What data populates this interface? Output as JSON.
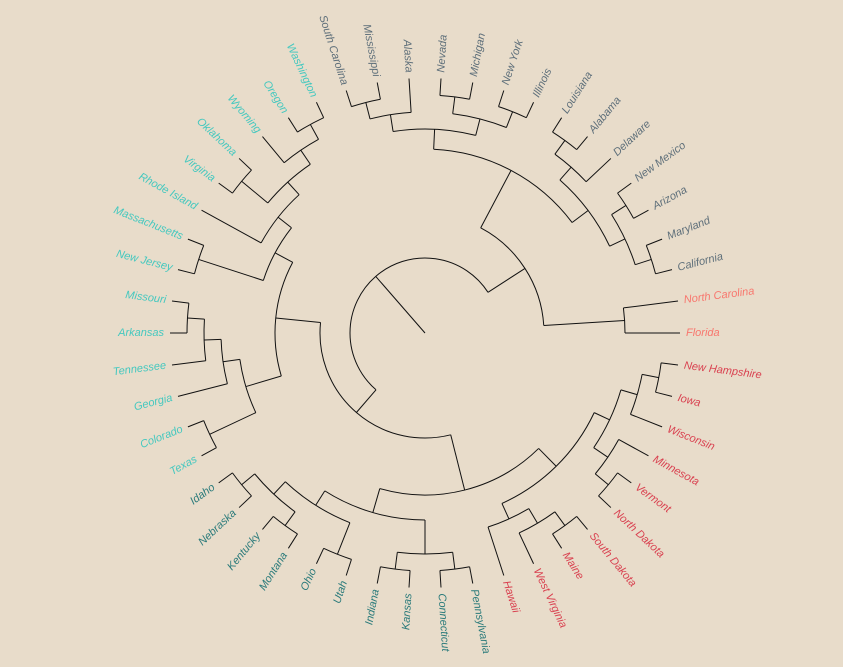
{
  "leaves": [
    {
      "label": "Florida",
      "color": "#f8766d"
    },
    {
      "label": "New Hampshire",
      "color": "#d9404f"
    },
    {
      "label": "Iowa",
      "color": "#d9404f"
    },
    {
      "label": "Wisconsin",
      "color": "#d9404f"
    },
    {
      "label": "Minnesota",
      "color": "#d9404f"
    },
    {
      "label": "Vermont",
      "color": "#d9404f"
    },
    {
      "label": "North Dakota",
      "color": "#d9404f"
    },
    {
      "label": "South Dakota",
      "color": "#d9404f"
    },
    {
      "label": "Maine",
      "color": "#d9404f"
    },
    {
      "label": "West Virginia",
      "color": "#d9404f"
    },
    {
      "label": "Hawaii",
      "color": "#d9404f"
    },
    {
      "label": "Pennsylvania",
      "color": "#2b7b7b"
    },
    {
      "label": "Connecticut",
      "color": "#2b7b7b"
    },
    {
      "label": "Kansas",
      "color": "#2b7b7b"
    },
    {
      "label": "Indiana",
      "color": "#2b7b7b"
    },
    {
      "label": "Utah",
      "color": "#2b7b7b"
    },
    {
      "label": "Ohio",
      "color": "#2b7b7b"
    },
    {
      "label": "Montana",
      "color": "#2b7b7b"
    },
    {
      "label": "Kentucky",
      "color": "#2b7b7b"
    },
    {
      "label": "Nebraska",
      "color": "#2b7b7b"
    },
    {
      "label": "Idaho",
      "color": "#2b7b7b"
    },
    {
      "label": "Texas",
      "color": "#44c8bf"
    },
    {
      "label": "Colorado",
      "color": "#44c8bf"
    },
    {
      "label": "Georgia",
      "color": "#44c8bf"
    },
    {
      "label": "Tennessee",
      "color": "#44c8bf"
    },
    {
      "label": "Arkansas",
      "color": "#44c8bf"
    },
    {
      "label": "Missouri",
      "color": "#44c8bf"
    },
    {
      "label": "New Jersey",
      "color": "#44c8bf"
    },
    {
      "label": "Massachusetts",
      "color": "#44c8bf"
    },
    {
      "label": "Rhode Island",
      "color": "#44c8bf"
    },
    {
      "label": "Virginia",
      "color": "#44c8bf"
    },
    {
      "label": "Oklahoma",
      "color": "#44c8bf"
    },
    {
      "label": "Wyoming",
      "color": "#44c8bf"
    },
    {
      "label": "Oregon",
      "color": "#44c8bf"
    },
    {
      "label": "Washington",
      "color": "#44c8bf"
    },
    {
      "label": "South Carolina",
      "color": "#5e6f7a"
    },
    {
      "label": "Mississippi",
      "color": "#5e6f7a"
    },
    {
      "label": "Alaska",
      "color": "#5e6f7a"
    },
    {
      "label": "Nevada",
      "color": "#5e6f7a"
    },
    {
      "label": "Michigan",
      "color": "#5e6f7a"
    },
    {
      "label": "New York",
      "color": "#5e6f7a"
    },
    {
      "label": "Illinois",
      "color": "#5e6f7a"
    },
    {
      "label": "Louisiana",
      "color": "#5e6f7a"
    },
    {
      "label": "Alabama",
      "color": "#5e6f7a"
    },
    {
      "label": "Delaware",
      "color": "#5e6f7a"
    },
    {
      "label": "New Mexico",
      "color": "#5e6f7a"
    },
    {
      "label": "Arizona",
      "color": "#5e6f7a"
    },
    {
      "label": "Maryland",
      "color": "#5e6f7a"
    },
    {
      "label": "California",
      "color": "#5e6f7a"
    },
    {
      "label": "North Carolina",
      "color": "#f8766d"
    }
  ]
}
